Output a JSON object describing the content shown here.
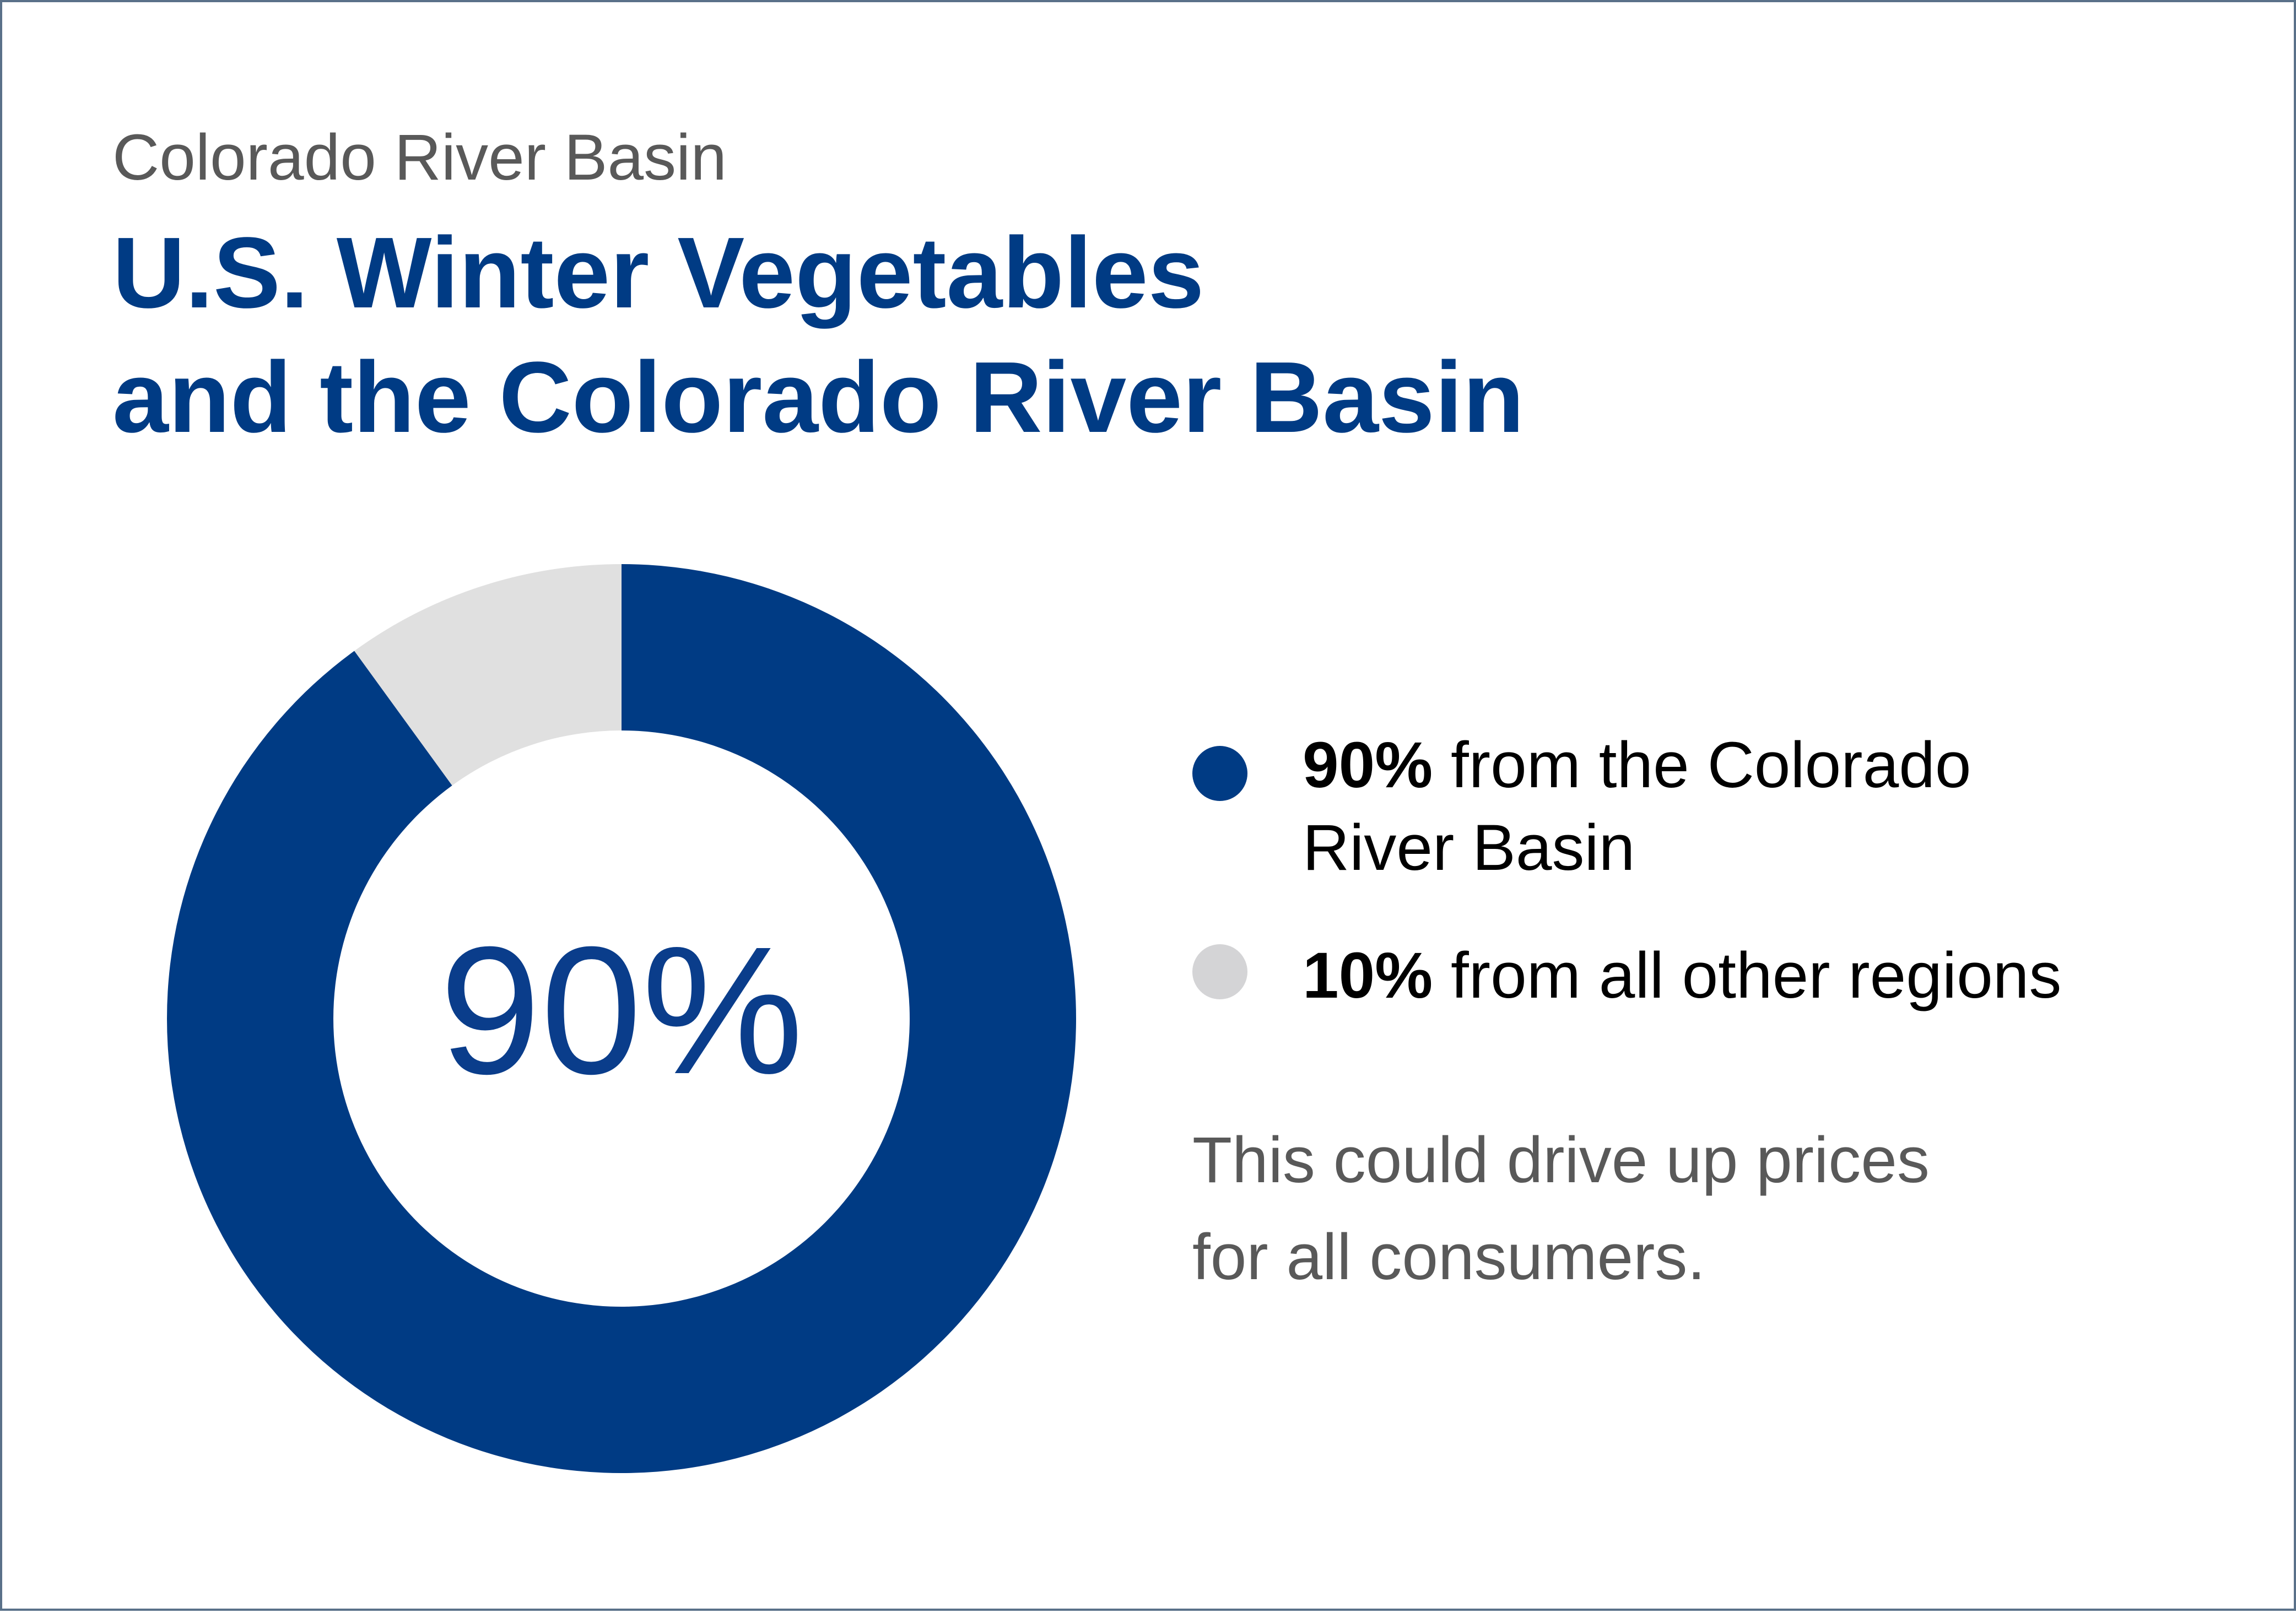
{
  "header": {
    "subtitle": "Colorado River Basin",
    "title_line1": "U.S. Winter Vegetables",
    "title_line2": "and the Colorado River Basin"
  },
  "chart_data": {
    "type": "pie",
    "variant": "donut",
    "title": "U.S. Winter Vegetables and the Colorado River Basin",
    "subtitle": "Colorado River Basin",
    "center_label": "90%",
    "slices": [
      {
        "label": "from the Colorado River Basin",
        "value": 90,
        "color": "#003b84"
      },
      {
        "label": "from all other regions",
        "value": 10,
        "color": "#e0e0e0"
      }
    ],
    "legend_position": "right"
  },
  "legend": [
    {
      "value": "90%",
      "text_line1": "from the Colorado",
      "text_line2": "River Basin",
      "dot_color": "#003b84"
    },
    {
      "value": "10%",
      "text_line1": "from all other regions",
      "text_line2": "",
      "dot_color": "#d4d4d6"
    }
  ],
  "note": {
    "line1": "This could drive up prices",
    "line2": "for all consumers."
  },
  "colors": {
    "brand_blue": "#003b84",
    "other_gray": "#e0e0e0",
    "text_gray": "#595959",
    "border": "#5a7189"
  }
}
